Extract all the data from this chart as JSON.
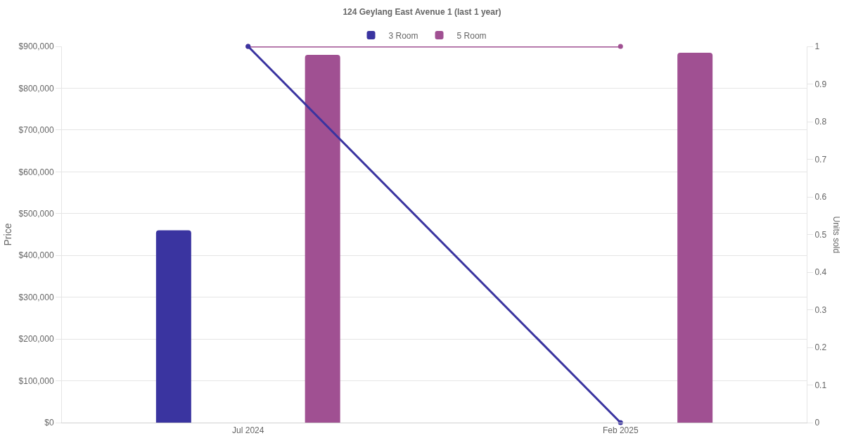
{
  "chart_data": {
    "type": "bar",
    "title": "124 Geylang East Avenue 1 (last 1 year)",
    "ylabel": "Price",
    "y2label": "Units sold",
    "categories": [
      "Jul 2024",
      "Feb 2025"
    ],
    "series": [
      {
        "name": "3 Room",
        "color": "#3a34a0",
        "values": [
          460000,
          null
        ]
      },
      {
        "name": "5 Room",
        "color": "#a05092",
        "values": [
          880000,
          885000
        ]
      },
      {
        "type": "line",
        "axis": "y2",
        "color": "#3a34a0",
        "values": [
          1,
          0
        ]
      },
      {
        "type": "line",
        "axis": "y2",
        "color": "#a05092",
        "values": [
          1,
          1
        ]
      }
    ],
    "ylim": [
      0,
      900000
    ],
    "yticks": [
      {
        "value": 0,
        "label": "$0"
      },
      {
        "value": 100000,
        "label": "$100,000"
      },
      {
        "value": 200000,
        "label": "$200,000"
      },
      {
        "value": 300000,
        "label": "$300,000"
      },
      {
        "value": 400000,
        "label": "$400,000"
      },
      {
        "value": 500000,
        "label": "$500,000"
      },
      {
        "value": 600000,
        "label": "$600,000"
      },
      {
        "value": 700000,
        "label": "$700,000"
      },
      {
        "value": 800000,
        "label": "$800,000"
      },
      {
        "value": 900000,
        "label": "$900,000"
      }
    ],
    "y2lim": [
      0,
      1
    ],
    "y2ticks": [
      0,
      0.1,
      0.2,
      0.3,
      0.4,
      0.5,
      0.6,
      0.7,
      0.8,
      0.9,
      1
    ],
    "grid": "y",
    "legend": "top",
    "marker": "circle"
  }
}
